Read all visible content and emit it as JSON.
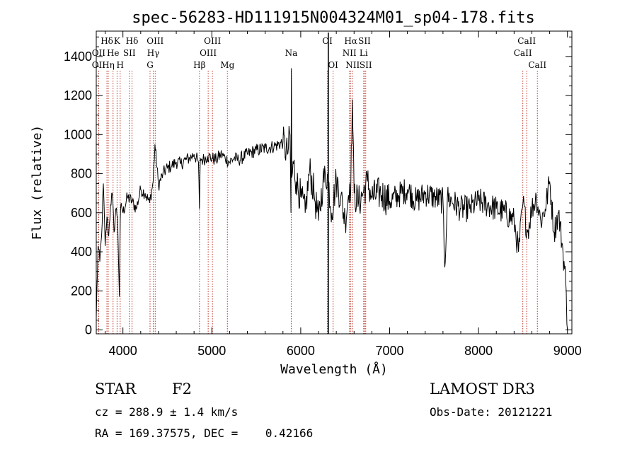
{
  "chart_data": {
    "type": "line",
    "title": "spec-56283-HD111915N004324M01_sp04-178.fits",
    "xlabel": "Wavelength (Å)",
    "ylabel": "Flux (relative)",
    "xlim": [
      3700,
      9050
    ],
    "ylim": [
      -20,
      1530
    ],
    "x_ticks": [
      4000,
      5000,
      6000,
      7000,
      8000,
      9000
    ],
    "y_ticks": [
      0,
      200,
      400,
      600,
      800,
      1000,
      1200,
      1400
    ],
    "grid": false,
    "series": [
      {
        "line_color": "#000000",
        "x": [
          3700,
          3720,
          3740,
          3760,
          3780,
          3800,
          3820,
          3840,
          3860,
          3880,
          3900,
          3920,
          3940,
          3960,
          3970,
          3980,
          4000,
          4050,
          4100,
          4150,
          4200,
          4250,
          4300,
          4340,
          4360,
          4400,
          4450,
          4500,
          4550,
          4600,
          4650,
          4700,
          4750,
          4800,
          4850,
          4861,
          4870,
          4900,
          4950,
          5000,
          5050,
          5100,
          5150,
          5200,
          5250,
          5300,
          5400,
          5500,
          5600,
          5700,
          5800,
          5850,
          5880,
          5890,
          5895,
          5900,
          5920,
          5950,
          6000,
          6050,
          6100,
          6150,
          6200,
          6250,
          6300,
          6350,
          6400,
          6450,
          6500,
          6550,
          6563,
          6580,
          6600,
          6650,
          6700,
          6750,
          6800,
          6900,
          7000,
          7100,
          7200,
          7300,
          7400,
          7500,
          7600,
          7620,
          7650,
          7700,
          7800,
          7900,
          8000,
          8100,
          8200,
          8300,
          8400,
          8450,
          8500,
          8550,
          8600,
          8650,
          8700,
          8750,
          8800,
          8850,
          8900,
          8950,
          8980,
          9000
        ],
        "y": [
          60,
          430,
          350,
          480,
          750,
          430,
          580,
          480,
          640,
          700,
          500,
          620,
          580,
          170,
          560,
          650,
          600,
          680,
          660,
          620,
          720,
          700,
          650,
          760,
          950,
          740,
          800,
          830,
          840,
          860,
          850,
          870,
          880,
          900,
          860,
          620,
          880,
          870,
          890,
          880,
          870,
          900,
          880,
          860,
          880,
          870,
          900,
          920,
          930,
          940,
          960,
          900,
          1000,
          600,
          1340,
          780,
          850,
          760,
          680,
          600,
          820,
          700,
          560,
          760,
          800,
          600,
          770,
          680,
          560,
          750,
          720,
          1180,
          700,
          650,
          700,
          760,
          680,
          700,
          660,
          690,
          720,
          660,
          700,
          680,
          660,
          320,
          680,
          660,
          620,
          620,
          660,
          640,
          620,
          600,
          560,
          400,
          650,
          500,
          620,
          680,
          560,
          620,
          760,
          500,
          600,
          400,
          250,
          0
        ]
      }
    ],
    "annotations": [
      {
        "label": "Hδ",
        "x": 3820,
        "row": 1
      },
      {
        "label": "K",
        "x": 3934,
        "row": 1
      },
      {
        "label": "Hδ",
        "x": 4102,
        "row": 1
      },
      {
        "label": "OII",
        "x": 3727,
        "row": 2
      },
      {
        "label": "He",
        "x": 3889,
        "row": 2
      },
      {
        "label": "SII",
        "x": 4072,
        "row": 2
      },
      {
        "label": "OII",
        "x": 3727,
        "row": 3
      },
      {
        "label": "Hη",
        "x": 3835,
        "row": 3
      },
      {
        "label": "H",
        "x": 3969,
        "row": 3
      },
      {
        "label": "OIII",
        "x": 4363,
        "row": 1
      },
      {
        "label": "Hγ",
        "x": 4341,
        "row": 2
      },
      {
        "label": "G",
        "x": 4305,
        "row": 3
      },
      {
        "label": "OIII",
        "x": 5007,
        "row": 1
      },
      {
        "label": "OIII",
        "x": 4959,
        "row": 2
      },
      {
        "label": "Hβ",
        "x": 4861,
        "row": 3
      },
      {
        "label": "Mg",
        "x": 5175,
        "row": 3
      },
      {
        "label": "Na",
        "x": 5893,
        "row": 2
      },
      {
        "label": "OI",
        "x": 6300,
        "row": 1
      },
      {
        "label": "OI",
        "x": 6364,
        "row": 3
      },
      {
        "label": "Hα",
        "x": 6563,
        "row": 1
      },
      {
        "label": "SII",
        "x": 6717,
        "row": 1
      },
      {
        "label": "NII",
        "x": 6548,
        "row": 2
      },
      {
        "label": "Li",
        "x": 6708,
        "row": 2
      },
      {
        "label": "NII",
        "x": 6584,
        "row": 3
      },
      {
        "label": "SII",
        "x": 6731,
        "row": 3
      },
      {
        "label": "CaII",
        "x": 8542,
        "row": 1
      },
      {
        "label": "CaII",
        "x": 8498,
        "row": 2
      },
      {
        "label": "CaII",
        "x": 8662,
        "row": 3
      }
    ],
    "absorption_marker_x": 6310
  },
  "info": {
    "object_class": "STAR",
    "subclass": "F2",
    "survey": "LAMOST DR3",
    "redshift": "cz = 288.9 ± 1.4 km/s",
    "obs_date": "Obs-Date: 20121221",
    "coords": "RA = 169.37575, DEC =    0.42166"
  }
}
